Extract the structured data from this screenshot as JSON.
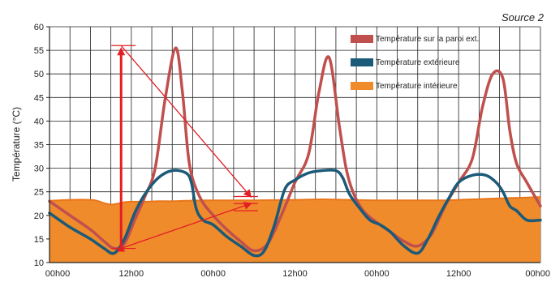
{
  "chart_data": {
    "type": "line",
    "source": "Source 2",
    "ylabel": "Température (°C)",
    "ylim": [
      10,
      60
    ],
    "yticks": [
      "10",
      "15",
      "20",
      "25",
      "30",
      "35",
      "40",
      "45",
      "50",
      "55",
      "60"
    ],
    "x_tick_labels": [
      "00h00",
      "12h00",
      "00h00",
      "12h00",
      "00h00",
      "12h00",
      "00h00"
    ],
    "xlim_hours": [
      0,
      72
    ],
    "grid": "horizontal lines every 5 °C, vertical lines every 3 h",
    "legend_position": "top-right",
    "series": [
      {
        "name": "Température sur la paroi ext.",
        "color": "#c0504d",
        "style": "line",
        "x": [
          0,
          3,
          6,
          8,
          9.5,
          11,
          12.5,
          14,
          15.5,
          17,
          18.5,
          19.5,
          20.5,
          22,
          24,
          26,
          28,
          30,
          32,
          34,
          36,
          38,
          39.5,
          41,
          42.5,
          43.5,
          44.5,
          46,
          48,
          50,
          52,
          54,
          56,
          58,
          60,
          62,
          63.5,
          65,
          66.5,
          67.5,
          68.5,
          70,
          72
        ],
        "y": [
          23,
          20,
          17,
          14.5,
          13,
          14,
          19,
          24,
          30,
          45,
          55.5,
          46,
          31,
          24,
          20,
          17,
          14.5,
          12.5,
          14,
          20,
          27,
          33,
          46,
          53.5,
          39,
          30,
          25,
          21,
          18.5,
          16.5,
          14.5,
          13.5,
          16,
          22,
          27,
          32,
          43,
          50,
          49,
          38,
          31,
          27,
          22
        ]
      },
      {
        "name": "Température extérieure",
        "color": "#1b5a78",
        "style": "line",
        "x": [
          0,
          3,
          6,
          8,
          9.5,
          11,
          12.5,
          14,
          16,
          18,
          20,
          20.8,
          21.5,
          22.5,
          24,
          26,
          28,
          30,
          31.5,
          33,
          34.5,
          36,
          38,
          40,
          42,
          43,
          44,
          45.5,
          47,
          48.5,
          50,
          52,
          54,
          55.5,
          57,
          58.5,
          60,
          62,
          64,
          65.5,
          66.5,
          67.5,
          68.5,
          70,
          72
        ],
        "y": [
          20.5,
          17.5,
          15,
          13,
          12,
          15,
          20.5,
          24.5,
          28,
          29.5,
          29,
          27,
          21.5,
          19,
          18,
          15.5,
          13.5,
          11.5,
          12.5,
          18,
          25.5,
          27.5,
          29,
          29.5,
          29.5,
          28,
          24.5,
          21.5,
          19,
          18,
          16.5,
          13.5,
          12,
          15,
          19.5,
          23.5,
          27,
          28.5,
          28.5,
          27,
          25,
          22,
          21,
          19,
          19
        ]
      },
      {
        "name": "Température intérieure",
        "color": "#f08b2c",
        "style": "area",
        "x": [
          0,
          3,
          6,
          7,
          8,
          9,
          10,
          11,
          12,
          14,
          16,
          18,
          20,
          24,
          30,
          36,
          40,
          44,
          48,
          52,
          56,
          58,
          60,
          62,
          64,
          66,
          68,
          70,
          72
        ],
        "y": [
          23.1,
          23.3,
          23.3,
          23.1,
          22.6,
          22.3,
          22.5,
          22.8,
          22.9,
          22.9,
          23.0,
          23.0,
          23.1,
          23.2,
          23.2,
          23.3,
          23.4,
          23.3,
          23.2,
          23.2,
          23.2,
          23.2,
          23.3,
          23.4,
          23.5,
          23.6,
          23.7,
          23.8,
          23.9
        ]
      }
    ],
    "annotations": [
      {
        "type": "double-arrow-vertical",
        "x_hours": 10.5,
        "y_from": 13,
        "y_to": 56,
        "color": "#e31e24"
      },
      {
        "type": "arrow",
        "from": [
          10.5,
          56
        ],
        "to": [
          29.5,
          24
        ],
        "color": "#e31e24"
      },
      {
        "type": "arrow",
        "from": [
          10.5,
          13
        ],
        "to": [
          29.5,
          22.5
        ],
        "color": "#e31e24"
      },
      {
        "type": "tick-marks",
        "x_hours": 27,
        "y_values": [
          24,
          22.5,
          21
        ],
        "color": "#e31e24"
      }
    ]
  }
}
